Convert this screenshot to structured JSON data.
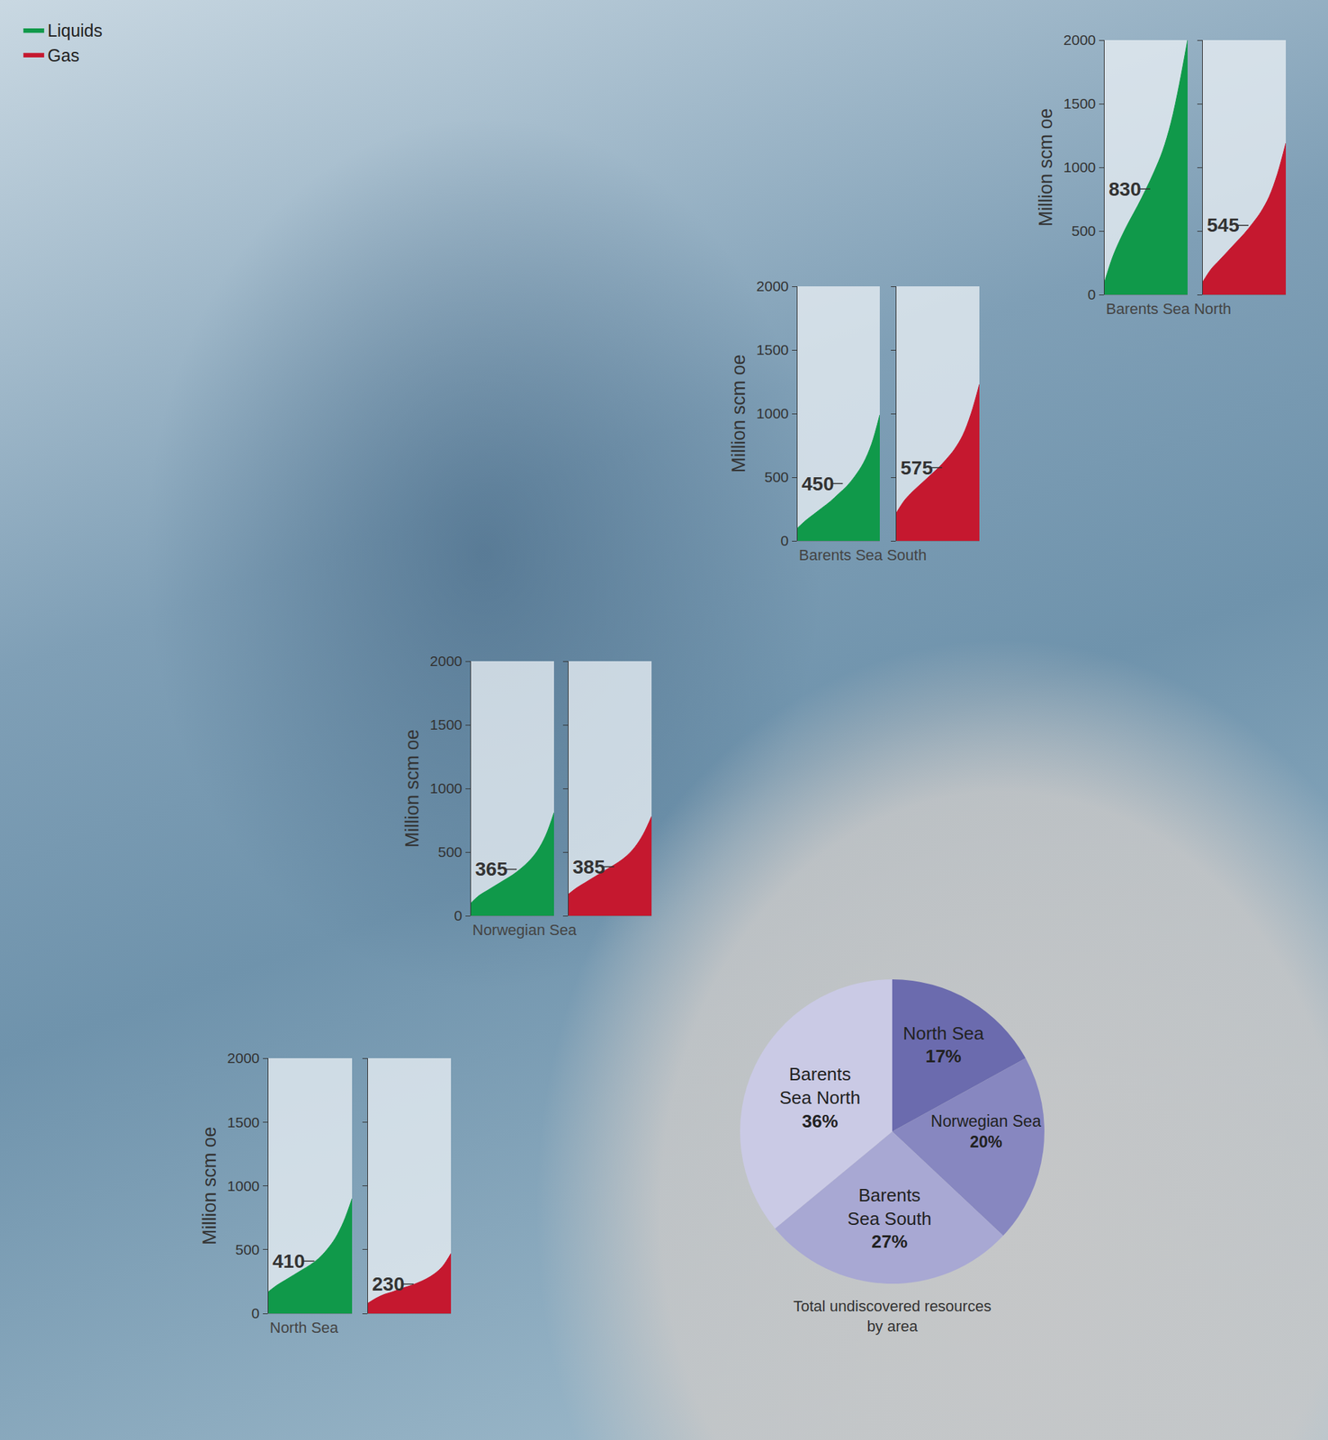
{
  "chart_data": [
    {
      "type": "area",
      "x_label": "Barents Sea North",
      "y_label": "Million scm oe",
      "x": [
        0,
        0.1,
        0.2,
        0.3,
        0.4,
        0.5,
        0.6,
        0.7,
        0.8,
        0.9,
        1
      ],
      "xlim": [
        0,
        1
      ],
      "ylim": [
        0,
        2000
      ],
      "yticks": [
        0,
        500,
        1000,
        1500,
        2000
      ],
      "grid": false,
      "tick_labels": "y",
      "legend": "top left",
      "series": [
        {
          "name": "Liquids",
          "color": "#10994a",
          "values": [
            100,
            300,
            450,
            580,
            700,
            830,
            970,
            1130,
            1350,
            1650,
            2000
          ]
        },
        {
          "name": "Gas",
          "color": "#c5182f",
          "values": [
            100,
            200,
            270,
            340,
            410,
            480,
            560,
            650,
            770,
            950,
            1190
          ]
        }
      ],
      "annotations": [
        {
          "series": "Liquids",
          "y": 830,
          "text": "830"
        },
        {
          "series": "Gas",
          "y": 545,
          "text": "545"
        }
      ]
    },
    {
      "type": "area",
      "x_label": "Barents Sea South",
      "y_label": "Million scm oe",
      "x": [
        0,
        0.1,
        0.2,
        0.3,
        0.4,
        0.5,
        0.6,
        0.7,
        0.8,
        0.9,
        1
      ],
      "xlim": [
        0,
        1
      ],
      "ylim": [
        0,
        2000
      ],
      "yticks": [
        0,
        500,
        1000,
        1500,
        2000
      ],
      "grid": false,
      "tick_labels": "y",
      "series": [
        {
          "name": "Liquids",
          "color": "#10994a",
          "values": [
            100,
            160,
            210,
            260,
            310,
            370,
            430,
            510,
            610,
            760,
            990
          ]
        },
        {
          "name": "Gas",
          "color": "#c5182f",
          "values": [
            220,
            320,
            390,
            450,
            510,
            570,
            640,
            720,
            830,
            1000,
            1230
          ]
        }
      ],
      "annotations": [
        {
          "series": "Liquids",
          "y": 450,
          "text": "450"
        },
        {
          "series": "Gas",
          "y": 575,
          "text": "575"
        }
      ]
    },
    {
      "type": "area",
      "x_label": "Norwegian Sea",
      "y_label": "Million scm oe",
      "x": [
        0,
        0.1,
        0.2,
        0.3,
        0.4,
        0.5,
        0.6,
        0.7,
        0.8,
        0.9,
        1
      ],
      "xlim": [
        0,
        1
      ],
      "ylim": [
        0,
        2000
      ],
      "yticks": [
        0,
        500,
        1000,
        1500,
        2000
      ],
      "grid": false,
      "tick_labels": "y",
      "series": [
        {
          "name": "Liquids",
          "color": "#10994a",
          "values": [
            100,
            160,
            200,
            240,
            280,
            320,
            370,
            430,
            510,
            630,
            810
          ]
        },
        {
          "name": "Gas",
          "color": "#c5182f",
          "values": [
            170,
            220,
            260,
            300,
            340,
            380,
            420,
            470,
            540,
            640,
            780
          ]
        }
      ],
      "annotations": [
        {
          "series": "Liquids",
          "y": 365,
          "text": "365"
        },
        {
          "series": "Gas",
          "y": 385,
          "text": "385"
        }
      ]
    },
    {
      "type": "area",
      "x_label": "North Sea",
      "y_label": "Million scm oe",
      "x": [
        0,
        0.1,
        0.2,
        0.3,
        0.4,
        0.5,
        0.6,
        0.7,
        0.8,
        0.9,
        1
      ],
      "xlim": [
        0,
        1
      ],
      "ylim": [
        0,
        2000
      ],
      "yticks": [
        0,
        500,
        1000,
        1500,
        2000
      ],
      "grid": false,
      "tick_labels": "y",
      "series": [
        {
          "name": "Liquids",
          "color": "#10994a",
          "values": [
            170,
            220,
            260,
            300,
            340,
            380,
            430,
            500,
            590,
            720,
            900
          ]
        },
        {
          "name": "Gas",
          "color": "#c5182f",
          "values": [
            80,
            120,
            150,
            170,
            195,
            215,
            240,
            270,
            310,
            370,
            470
          ]
        }
      ],
      "annotations": [
        {
          "series": "Liquids",
          "y": 410,
          "text": "410"
        },
        {
          "series": "Gas",
          "y": 230,
          "text": "230"
        }
      ]
    },
    {
      "type": "pie",
      "title": "Total undiscovered resources by area",
      "categories": [
        "North Sea",
        "Norwegian Sea",
        "Barents Sea South",
        "Barents Sea North"
      ],
      "values": [
        17,
        20,
        27,
        36
      ],
      "value_labels": [
        "17%",
        "20%",
        "27%",
        "36%"
      ],
      "colors": [
        "#6b6bae",
        "#8787c0",
        "#a8a8d3",
        "#cacae5"
      ],
      "data_labels": true
    }
  ]
}
